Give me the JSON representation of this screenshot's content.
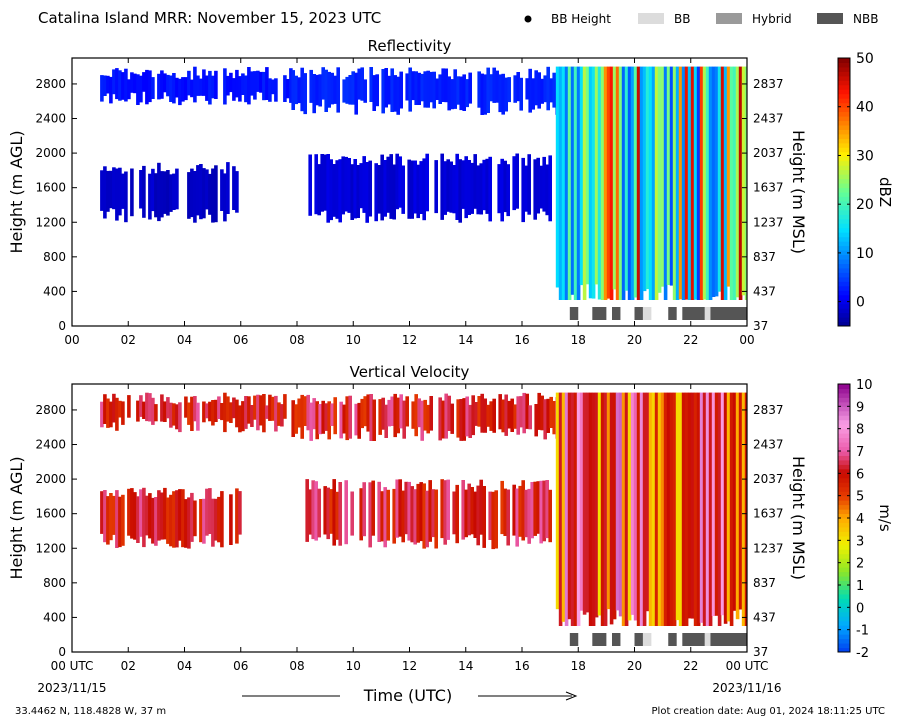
{
  "header": {
    "title": "Catalina Island MRR:  November 15, 2023 UTC",
    "legend": [
      {
        "label": "BB Height",
        "kind": "dot",
        "color": "#000000"
      },
      {
        "label": "BB",
        "kind": "box",
        "color": "#dcdcdc"
      },
      {
        "label": "Hybrid",
        "kind": "box",
        "color": "#9a9a9a"
      },
      {
        "label": "NBB",
        "kind": "box",
        "color": "#555555"
      }
    ]
  },
  "footer": {
    "coords": "33.4462 N, 118.4828 W, 37 m",
    "created": "Plot creation date: Aug 01, 2024 18:11:25 UTC",
    "xlabel": "Time (UTC)",
    "start_date": "2023/11/15",
    "end_date": "2023/11/16"
  },
  "chart_data": [
    {
      "type": "heatmap",
      "title": "Reflectivity",
      "ylabel": "Height (m AGL)",
      "ylabel_right": "Height (m MSL)",
      "xlim": [
        0,
        24
      ],
      "ylim": [
        0,
        3100
      ],
      "x_ticks": [
        "00",
        "02",
        "04",
        "06",
        "08",
        "10",
        "12",
        "14",
        "16",
        "18",
        "20",
        "22",
        "00"
      ],
      "y_ticks": [
        0,
        400,
        800,
        1200,
        1600,
        2000,
        2400,
        2800
      ],
      "y_ticks_right": [
        37,
        437,
        837,
        1237,
        1637,
        2037,
        2437,
        2837
      ],
      "colorbar": {
        "label": "dBZ",
        "range": [
          -5,
          50
        ],
        "ticks": [
          0,
          10,
          20,
          30,
          40,
          50
        ],
        "colormap": "jet"
      },
      "regions": [
        {
          "x": [
            1.0,
            7.8
          ],
          "y": [
            2600,
            3000
          ],
          "value": 2
        },
        {
          "x": [
            7.8,
            17.2
          ],
          "y": [
            2500,
            3000
          ],
          "value": 3
        },
        {
          "x": [
            1.0,
            6.0
          ],
          "y": [
            1250,
            1900
          ],
          "value": -2
        },
        {
          "x": [
            8.3,
            17.0
          ],
          "y": [
            1250,
            2000
          ],
          "value": -1
        },
        {
          "x": [
            17.2,
            24.0
          ],
          "y": [
            300,
            3000
          ],
          "value": 15
        }
      ],
      "bright_band": [
        {
          "start": 17.7,
          "end": 18.0,
          "class": "NBB"
        },
        {
          "start": 18.5,
          "end": 19.0,
          "class": "NBB"
        },
        {
          "start": 19.2,
          "end": 19.5,
          "class": "NBB"
        },
        {
          "start": 20.0,
          "end": 20.3,
          "class": "NBB"
        },
        {
          "start": 20.3,
          "end": 20.6,
          "class": "BB"
        },
        {
          "start": 21.2,
          "end": 21.5,
          "class": "NBB"
        },
        {
          "start": 21.7,
          "end": 22.5,
          "class": "NBB"
        },
        {
          "start": 22.5,
          "end": 22.7,
          "class": "BB"
        },
        {
          "start": 22.7,
          "end": 24.0,
          "class": "NBB"
        }
      ]
    },
    {
      "type": "heatmap",
      "title": "Vertical Velocity",
      "ylabel": "Height (m AGL)",
      "ylabel_right": "Height (m MSL)",
      "xlim": [
        0,
        24
      ],
      "ylim": [
        0,
        3100
      ],
      "x_ticks": [
        "00 UTC",
        "02",
        "04",
        "06",
        "08",
        "10",
        "12",
        "14",
        "16",
        "18",
        "20",
        "22",
        "00 UTC"
      ],
      "y_ticks": [
        0,
        400,
        800,
        1200,
        1600,
        2000,
        2400,
        2800
      ],
      "y_ticks_right": [
        37,
        437,
        837,
        1237,
        1637,
        2037,
        2437,
        2837
      ],
      "colorbar": {
        "label": "m/s",
        "range": [
          -2,
          10
        ],
        "ticks": [
          -2,
          -1,
          0,
          1,
          2,
          3,
          4,
          5,
          6,
          7,
          8,
          9,
          10
        ],
        "colormap": "velocity"
      },
      "regions": [
        {
          "x": [
            1.0,
            7.8
          ],
          "y": [
            2600,
            3000
          ],
          "value": 6
        },
        {
          "x": [
            7.8,
            17.2
          ],
          "y": [
            2500,
            3000
          ],
          "value": 6
        },
        {
          "x": [
            1.0,
            6.0
          ],
          "y": [
            1250,
            1900
          ],
          "value": 6
        },
        {
          "x": [
            8.3,
            17.0
          ],
          "y": [
            1250,
            2000
          ],
          "value": 6
        },
        {
          "x": [
            17.2,
            24.0
          ],
          "y": [
            300,
            3000
          ],
          "value": 5
        }
      ],
      "bright_band": [
        {
          "start": 17.7,
          "end": 18.0,
          "class": "NBB"
        },
        {
          "start": 18.5,
          "end": 19.0,
          "class": "NBB"
        },
        {
          "start": 19.2,
          "end": 19.5,
          "class": "NBB"
        },
        {
          "start": 20.0,
          "end": 20.3,
          "class": "NBB"
        },
        {
          "start": 20.3,
          "end": 20.6,
          "class": "BB"
        },
        {
          "start": 21.2,
          "end": 21.5,
          "class": "NBB"
        },
        {
          "start": 21.7,
          "end": 22.5,
          "class": "NBB"
        },
        {
          "start": 22.5,
          "end": 22.7,
          "class": "BB"
        },
        {
          "start": 22.7,
          "end": 24.0,
          "class": "NBB"
        }
      ]
    }
  ]
}
